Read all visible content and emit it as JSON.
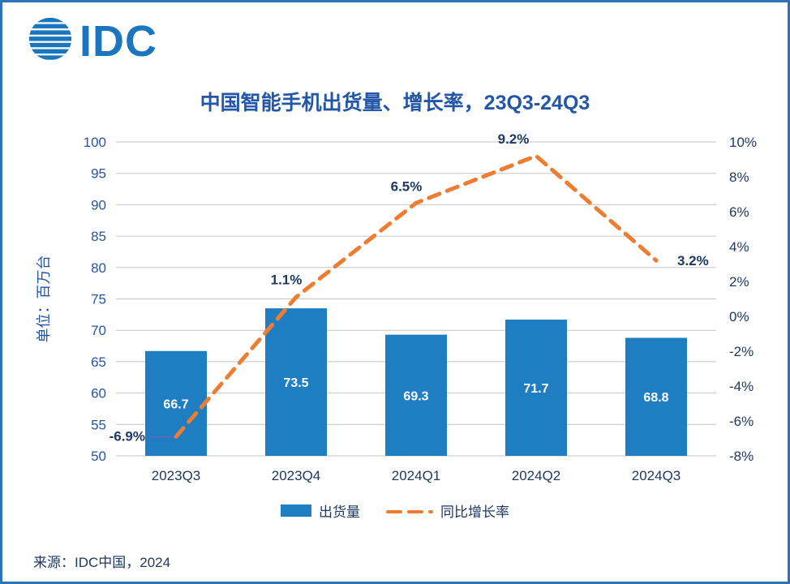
{
  "header": {
    "logo_text": "IDC"
  },
  "chart_data": {
    "type": "combo_bar_line",
    "title": "中国智能手机出货量、增长率，23Q3-24Q3",
    "categories": [
      "2023Q3",
      "2023Q4",
      "2024Q1",
      "2024Q2",
      "2024Q3"
    ],
    "series": [
      {
        "name": "出货量",
        "type": "bar",
        "axis": "left",
        "values": [
          66.7,
          73.5,
          69.3,
          71.7,
          68.8
        ],
        "labels": [
          "66.7",
          "73.5",
          "69.3",
          "71.7",
          "68.8"
        ],
        "color": "#1F7DC2"
      },
      {
        "name": "同比增长率",
        "type": "line",
        "axis": "right",
        "style": "dashed",
        "values": [
          -6.9,
          1.1,
          6.5,
          9.2,
          3.2
        ],
        "labels": [
          "-6.9%",
          "1.1%",
          "6.5%",
          "9.2%",
          "3.2%"
        ],
        "color": "#ED7D31"
      }
    ],
    "left_axis": {
      "label": "单位：百万台",
      "min": 50,
      "max": 100,
      "step": 5,
      "ticks": [
        "50",
        "55",
        "60",
        "65",
        "70",
        "75",
        "80",
        "85",
        "90",
        "95",
        "100"
      ]
    },
    "right_axis": {
      "min": -8,
      "max": 10,
      "step": 2,
      "format": "percent",
      "ticks": [
        "-8%",
        "-6%",
        "-4%",
        "-2%",
        "0%",
        "2%",
        "4%",
        "6%",
        "8%",
        "10%"
      ]
    },
    "legend": {
      "position": "bottom",
      "entries": [
        "出货量",
        "同比增长率"
      ]
    },
    "grid": true
  },
  "footer": {
    "source": "来源：IDC中国，2024"
  },
  "colors": {
    "bar": "#1F7DC2",
    "line": "#ED7D31",
    "title": "#2456A8",
    "axis_left": "#2456A8",
    "axis_right": "#1F3864",
    "border": "#2E74B5"
  }
}
